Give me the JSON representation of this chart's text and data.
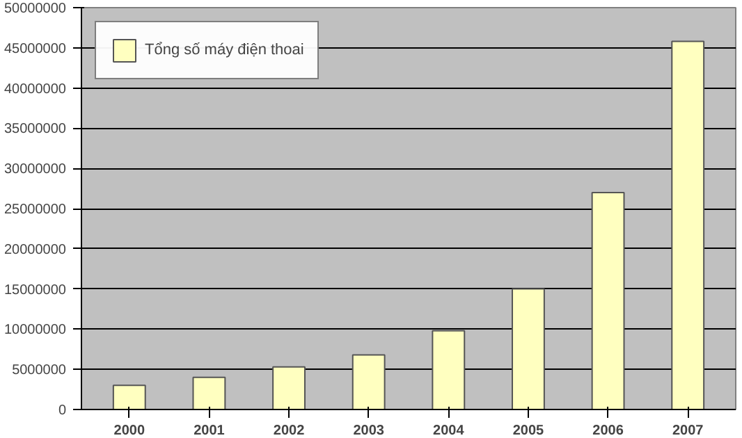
{
  "chart_data": {
    "type": "bar",
    "categories": [
      "2000",
      "2001",
      "2002",
      "2003",
      "2004",
      "2005",
      "2006",
      "2007"
    ],
    "series": [
      {
        "name": "Tổng số máy điện thoai",
        "color": "#ffffc0",
        "values": [
          3000000,
          4000000,
          5300000,
          6800000,
          9800000,
          15000000,
          27000000,
          45800000
        ]
      }
    ],
    "ylim": [
      0,
      50000000
    ],
    "yticks": [
      0,
      5000000,
      10000000,
      15000000,
      20000000,
      25000000,
      30000000,
      35000000,
      40000000,
      45000000,
      50000000
    ],
    "grid": "y",
    "legend": "top left"
  }
}
